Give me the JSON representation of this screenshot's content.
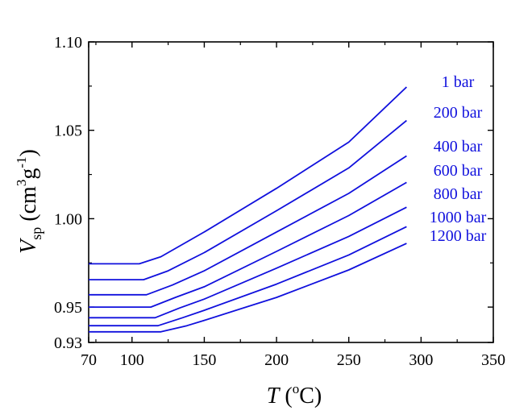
{
  "chart_data": {
    "type": "line",
    "xlabel": {
      "symbol": "T",
      "unit_open": " (",
      "unit_sup": "o",
      "unit_close": "C)"
    },
    "ylabel": {
      "symbol": "V",
      "sub": "sp",
      "unit_open": " (cm",
      "sup1": "3",
      "mid": "g",
      "sup2": "-1",
      "unit_close": ")"
    },
    "xlim": [
      70,
      350
    ],
    "ylim": [
      0.93,
      1.1
    ],
    "xticks": [
      70,
      100,
      150,
      200,
      250,
      300,
      350
    ],
    "xtick_labels": [
      "70",
      "100",
      "150",
      "200",
      "250",
      "300",
      "350"
    ],
    "yticks": [
      0.93,
      0.95,
      1.0,
      1.05,
      1.1
    ],
    "ytick_labels": [
      "0.93",
      "0.95",
      "1.00",
      "1.05",
      "1.10"
    ],
    "grid": false,
    "legend": "right-of-line-ends",
    "line_color": "#1010dd",
    "series": [
      {
        "name": "1 bar",
        "x": [
          70,
          105,
          120,
          150,
          200,
          250,
          290
        ],
        "values": [
          0.9745,
          0.9745,
          0.9785,
          0.9925,
          1.0172,
          1.0433,
          1.0745
        ]
      },
      {
        "name": "200 bar",
        "x": [
          70,
          108,
          125,
          150,
          200,
          250,
          290
        ],
        "values": [
          0.9655,
          0.9655,
          0.9705,
          0.9808,
          1.0045,
          1.0287,
          1.0555
        ]
      },
      {
        "name": "400 bar",
        "x": [
          70,
          110,
          128,
          150,
          200,
          250,
          290
        ],
        "values": [
          0.957,
          0.957,
          0.9625,
          0.9705,
          0.9925,
          1.0143,
          1.0355
        ]
      },
      {
        "name": "600 bar",
        "x": [
          70,
          113,
          130,
          150,
          200,
          250,
          290
        ],
        "values": [
          0.95,
          0.95,
          0.9555,
          0.9615,
          0.9815,
          1.0018,
          1.0205
        ]
      },
      {
        "name": "800 bar",
        "x": [
          70,
          116,
          133,
          150,
          200,
          250,
          290
        ],
        "values": [
          0.944,
          0.944,
          0.9495,
          0.9545,
          0.972,
          0.99,
          1.0065
        ]
      },
      {
        "name": "1000 bar",
        "x": [
          70,
          118,
          135,
          150,
          200,
          250,
          290
        ],
        "values": [
          0.9395,
          0.9395,
          0.944,
          0.9482,
          0.963,
          0.9795,
          0.9955
        ]
      },
      {
        "name": "1200 bar",
        "x": [
          70,
          120,
          138,
          150,
          200,
          250,
          290
        ],
        "values": [
          0.936,
          0.936,
          0.9395,
          0.9425,
          0.9555,
          0.971,
          0.986
        ]
      }
    ]
  }
}
